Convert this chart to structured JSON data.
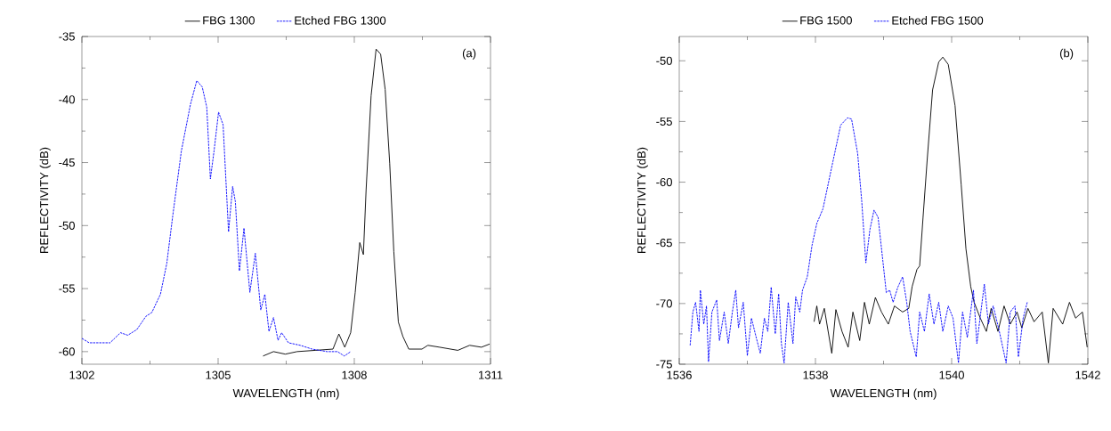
{
  "chart_data": [
    {
      "type": "line",
      "xlabel": "WAVELENGTH (nm)",
      "ylabel": "REFLECTIVITY (dB)",
      "annotations": [
        "(a)"
      ],
      "legend": "top",
      "xlim": [
        1302,
        1311
      ],
      "ylim": [
        -61,
        -35
      ],
      "xticks": [
        1302,
        {
          "value": 1303.5,
          "label": null
        },
        1305,
        {
          "value": 1306.5,
          "label": null
        },
        1308,
        {
          "value": 1309.5,
          "label": null
        },
        1311
      ],
      "yticks": [
        -60,
        {
          "value": -57.5,
          "label": null
        },
        -55,
        {
          "value": -52.5,
          "label": null
        },
        -50,
        {
          "value": -47.5,
          "label": null
        },
        -45,
        {
          "value": -42.5,
          "label": null
        },
        -40,
        {
          "value": -37.5,
          "label": null
        },
        -35
      ],
      "series": [
        {
          "name": "FBG 1300",
          "color": "#000000",
          "line_style": "solid",
          "x": [
            1305.99,
            1306.22,
            1306.48,
            1306.74,
            1307.14,
            1307.53,
            1307.66,
            1307.79,
            1307.92,
            1308.02,
            1308.12,
            1308.2,
            1308.26,
            1308.37,
            1308.48,
            1308.58,
            1308.68,
            1308.78,
            1308.87,
            1308.97,
            1309.07,
            1309.2,
            1309.49,
            1309.62,
            1309.88,
            1310.28,
            1310.54,
            1310.8,
            1310.98
          ],
          "values": [
            -60.35,
            -60.0,
            -60.2,
            -60.0,
            -59.9,
            -59.8,
            -58.6,
            -59.65,
            -58.5,
            -55.3,
            -51.35,
            -52.3,
            -47.15,
            -39.7,
            -36.0,
            -36.4,
            -39.2,
            -45.05,
            -52.05,
            -57.65,
            -58.8,
            -59.8,
            -59.8,
            -59.5,
            -59.65,
            -59.9,
            -59.5,
            -59.65,
            -59.4
          ]
        },
        {
          "name": "Etched FBG 1300",
          "color": "#0000ff",
          "line_style": "dashed",
          "x": [
            1302.0,
            1302.16,
            1302.36,
            1302.62,
            1302.85,
            1303.01,
            1303.21,
            1303.41,
            1303.54,
            1303.73,
            1303.87,
            1304.0,
            1304.19,
            1304.39,
            1304.53,
            1304.65,
            1304.75,
            1304.83,
            1304.91,
            1305.01,
            1305.11,
            1305.23,
            1305.32,
            1305.38,
            1305.47,
            1305.57,
            1305.7,
            1305.82,
            1305.94,
            1306.03,
            1306.12,
            1306.22,
            1306.32,
            1306.4,
            1306.55,
            1306.81,
            1307.07,
            1307.4,
            1307.63,
            1307.78,
            1307.92
          ],
          "values": [
            -58.95,
            -59.3,
            -59.3,
            -59.3,
            -58.5,
            -58.7,
            -58.25,
            -57.2,
            -56.9,
            -55.45,
            -53.0,
            -49.25,
            -44.1,
            -40.4,
            -38.5,
            -39.0,
            -40.6,
            -46.3,
            -44.1,
            -41.0,
            -42.0,
            -50.5,
            -46.9,
            -48.1,
            -53.6,
            -50.2,
            -55.3,
            -52.2,
            -56.7,
            -55.45,
            -58.4,
            -57.3,
            -59.1,
            -58.5,
            -59.3,
            -59.5,
            -59.8,
            -60.0,
            -60.0,
            -60.35,
            -60.0
          ]
        }
      ]
    },
    {
      "type": "line",
      "xlabel": "WAVELENGTH (nm)",
      "ylabel": "REFLECTIVITY (dB)",
      "annotations": [
        "(b)"
      ],
      "legend": "top",
      "xlim": [
        1536,
        1542
      ],
      "ylim": [
        -75,
        -48
      ],
      "xticks": [
        1536,
        {
          "value": 1537,
          "label": null
        },
        1538,
        {
          "value": 1539,
          "label": null
        },
        1540,
        {
          "value": 1541,
          "label": null
        },
        1542
      ],
      "yticks": [
        -75,
        {
          "value": -72.5,
          "label": null
        },
        -70,
        {
          "value": -67.5,
          "label": null
        },
        -65,
        {
          "value": -62.5,
          "label": null
        },
        -60,
        {
          "value": -57.5,
          "label": null
        },
        -55,
        {
          "value": -52.5,
          "label": null
        },
        -50
      ],
      "series": [
        {
          "name": "FBG 1500",
          "color": "#000000",
          "line_style": "solid",
          "x": [
            1537.98,
            1538.02,
            1538.06,
            1538.13,
            1538.24,
            1538.3,
            1538.39,
            1538.48,
            1538.55,
            1538.65,
            1538.72,
            1538.79,
            1538.88,
            1538.97,
            1539.07,
            1539.16,
            1539.28,
            1539.37,
            1539.42,
            1539.49,
            1539.53,
            1539.58,
            1539.64,
            1539.72,
            1539.81,
            1539.87,
            1539.95,
            1540.05,
            1540.14,
            1540.21,
            1540.28,
            1540.33,
            1540.42,
            1540.51,
            1540.58,
            1540.68,
            1540.77,
            1540.86,
            1540.96,
            1541.03,
            1541.12,
            1541.21,
            1541.33,
            1541.42,
            1541.49,
            1541.63,
            1541.73,
            1541.82,
            1541.92,
            1541.99
          ],
          "values": [
            -71.5,
            -70.2,
            -71.7,
            -70.4,
            -74.1,
            -70.5,
            -72.3,
            -73.6,
            -70.7,
            -73.05,
            -69.9,
            -71.7,
            -69.5,
            -70.7,
            -71.7,
            -70.2,
            -70.7,
            -70.4,
            -68.6,
            -67.2,
            -66.9,
            -62.9,
            -58.2,
            -52.4,
            -50.1,
            -49.7,
            -50.3,
            -53.7,
            -60.2,
            -65.5,
            -68.6,
            -69.9,
            -71.2,
            -72.3,
            -70.4,
            -72.3,
            -70.2,
            -71.7,
            -70.7,
            -72.0,
            -70.4,
            -71.5,
            -70.7,
            -74.9,
            -70.4,
            -71.7,
            -69.9,
            -71.2,
            -70.7,
            -73.6
          ]
        },
        {
          "name": "Etched FBG 1500",
          "color": "#0000ff",
          "line_style": "dashed",
          "x": [
            1536.16,
            1536.2,
            1536.24,
            1536.29,
            1536.31,
            1536.36,
            1536.4,
            1536.43,
            1536.48,
            1536.55,
            1536.59,
            1536.66,
            1536.72,
            1536.78,
            1536.83,
            1536.87,
            1536.94,
            1537.0,
            1537.06,
            1537.13,
            1537.19,
            1537.25,
            1537.3,
            1537.35,
            1537.41,
            1537.46,
            1537.5,
            1537.54,
            1537.6,
            1537.67,
            1537.71,
            1537.77,
            1537.81,
            1537.88,
            1537.95,
            1538.02,
            1538.11,
            1538.23,
            1538.37,
            1538.47,
            1538.53,
            1538.62,
            1538.68,
            1538.74,
            1538.8,
            1538.86,
            1538.92,
            1538.99,
            1539.04,
            1539.09,
            1539.14,
            1539.21,
            1539.28,
            1539.34,
            1539.39,
            1539.48,
            1539.53,
            1539.6,
            1539.67,
            1539.74,
            1539.81,
            1539.87,
            1539.95,
            1540.02,
            1540.1,
            1540.16,
            1540.23,
            1540.32,
            1540.37,
            1540.48,
            1540.54,
            1540.61,
            1540.7,
            1540.8,
            1540.86,
            1540.93,
            1540.98,
            1541.05,
            1541.11
          ],
          "values": [
            -73.45,
            -70.7,
            -69.9,
            -72.3,
            -68.9,
            -71.7,
            -70.2,
            -74.8,
            -70.7,
            -69.7,
            -73.05,
            -70.7,
            -73.3,
            -70.7,
            -68.9,
            -72.0,
            -69.9,
            -74.3,
            -71.2,
            -72.8,
            -74.1,
            -71.2,
            -72.3,
            -68.65,
            -72.5,
            -69.2,
            -73.3,
            -74.9,
            -69.9,
            -73.3,
            -69.45,
            -70.7,
            -68.9,
            -67.8,
            -65.2,
            -63.4,
            -62.2,
            -59.0,
            -55.3,
            -54.7,
            -54.8,
            -57.65,
            -61.6,
            -66.65,
            -63.9,
            -62.3,
            -62.9,
            -66.5,
            -69.1,
            -68.9,
            -69.9,
            -68.65,
            -67.8,
            -69.9,
            -72.3,
            -74.4,
            -70.7,
            -72.3,
            -69.2,
            -71.7,
            -69.9,
            -72.3,
            -70.2,
            -71.2,
            -74.9,
            -70.7,
            -72.8,
            -68.9,
            -73.3,
            -68.4,
            -71.7,
            -70.2,
            -72.3,
            -74.9,
            -70.7,
            -70.2,
            -74.4,
            -71.2,
            -69.9
          ]
        }
      ]
    }
  ]
}
